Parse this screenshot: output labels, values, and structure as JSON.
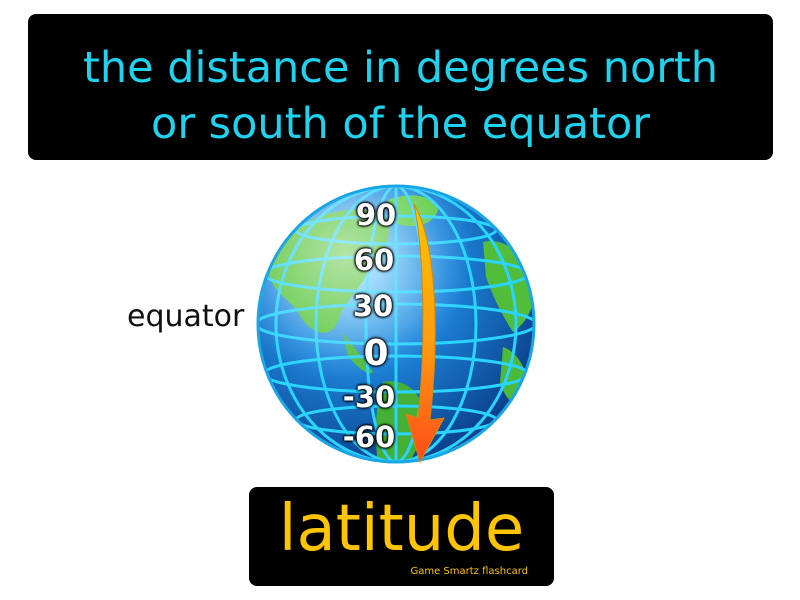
{
  "definition": {
    "line1": "the distance in degrees north",
    "line2": "or south of the equator"
  },
  "diagram": {
    "equator_label": "equator",
    "latitude_labels": [
      "90",
      "60",
      "30",
      "0",
      "-30",
      "-60"
    ]
  },
  "term": "latitude",
  "brand": "Game  Smartz  flashcard",
  "colors": {
    "definition_text": "#1fd3ee",
    "term_text": "#ffc400",
    "card_background": "#000000",
    "globe_ocean": "#1c7fd6",
    "globe_land": "#4cb93a",
    "grid_lines": "#2ad4ff",
    "arrow_top": "#ffc400",
    "arrow_bottom": "#ff4a1a"
  },
  "icons": {
    "globe": "globe-icon",
    "arrow": "down-arrow-icon"
  }
}
